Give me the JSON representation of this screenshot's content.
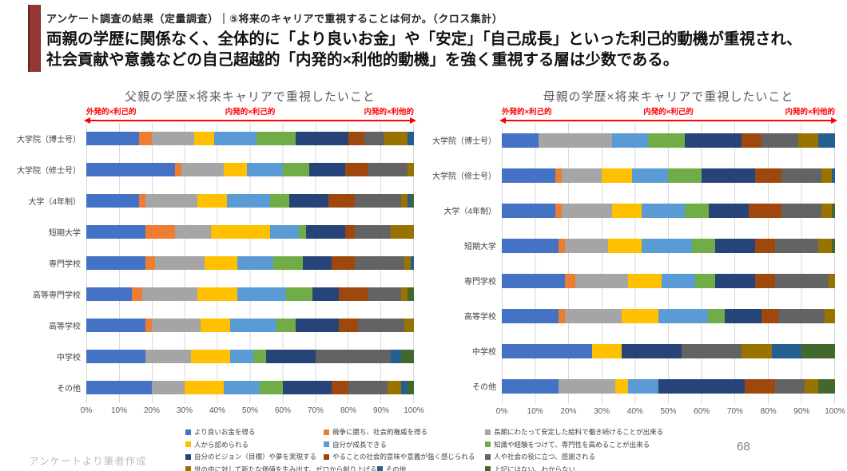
{
  "slide": {
    "kicker": "アンケート調査の結果（定量調査）｜⑤将来のキャリアで重視することは何か。（クロス集計）",
    "headline_line1": "両親の学歴に関係なく、全体的に「より良いお金」や「安定」「自己成長」といった利己的動機が重視され、",
    "headline_line2": "社会貢献や意義などの自己超越的「内発的×利他的動機」を強く重視する層は少数である。",
    "footer_note": "アンケートより筆者作成",
    "page_number": "68",
    "accent_color": "#943634"
  },
  "axis_labels": {
    "left": "外発的×利己的",
    "center": "内発的×利己的",
    "right": "内発的×利他的",
    "color": "#ff0000"
  },
  "legend": {
    "left_chart_rows": [
      [
        0,
        1
      ],
      [
        3,
        4
      ],
      [
        6,
        7
      ],
      [
        9,
        10
      ]
    ],
    "right_chart_rows": [
      [
        2
      ],
      [
        5
      ],
      [
        8
      ],
      [
        11
      ]
    ]
  },
  "chart_data": [
    {
      "type": "bar",
      "orientation": "horizontal-stacked",
      "title": "父親の学歴×将来キャリアで重視したいこと",
      "x_range": [
        0,
        100
      ],
      "x_ticks": [
        "0%",
        "10%",
        "20%",
        "30%",
        "40%",
        "50%",
        "60%",
        "70%",
        "80%",
        "90%",
        "100%"
      ],
      "grid": true,
      "legend_position": "bottom",
      "categories": [
        "大学院（博士号）",
        "大学院（修士号）",
        "大学（4年制）",
        "短期大学",
        "専門学校",
        "高等専門学校",
        "高等学校",
        "中学校",
        "その他"
      ],
      "series": [
        {
          "name": "より良いお金を得る",
          "color": "#4472C4",
          "values": [
            16,
            27,
            16,
            18,
            18,
            14,
            18,
            18,
            20
          ]
        },
        {
          "name": "競争に勝ち、社会的権威を得る",
          "color": "#ED7D31",
          "values": [
            4,
            2,
            2,
            9,
            3,
            3,
            2,
            0,
            0
          ]
        },
        {
          "name": "長期にわたって安定した給料で働き続けることが出来る",
          "color": "#A5A5A5",
          "values": [
            13,
            13,
            16,
            11,
            15,
            17,
            15,
            14,
            10
          ]
        },
        {
          "name": "人から認められる",
          "color": "#FFC000",
          "values": [
            6,
            7,
            9,
            18,
            10,
            12,
            9,
            12,
            12
          ]
        },
        {
          "name": "自分が成長できる",
          "color": "#5B9BD5",
          "values": [
            13,
            11,
            13,
            9,
            11,
            15,
            14,
            7,
            11
          ]
        },
        {
          "name": "知識や経験をつけて、専門性を高めることが出来る",
          "color": "#70AD47",
          "values": [
            12,
            8,
            6,
            2,
            9,
            8,
            6,
            4,
            7
          ]
        },
        {
          "name": "自分のビジョン（目標）や夢を実現する",
          "color": "#264478",
          "values": [
            16,
            11,
            12,
            12,
            9,
            8,
            13,
            15,
            15
          ]
        },
        {
          "name": "やることの社会的意味や意義が強く感じられる",
          "color": "#9E480E",
          "values": [
            5,
            7,
            8,
            3,
            7,
            9,
            6,
            0,
            5
          ]
        },
        {
          "name": "人や社会の役に立つ、感謝される",
          "color": "#636363",
          "values": [
            6,
            12,
            14,
            11,
            15,
            10,
            14,
            23,
            12
          ]
        },
        {
          "name": "世の中に対して新たな価値を生み出す、ゼロから創り上げる",
          "color": "#997300",
          "values": [
            7,
            2,
            2,
            7,
            2,
            2,
            3,
            0,
            4
          ]
        },
        {
          "name": "その他",
          "color": "#255E91",
          "values": [
            2,
            0,
            1,
            0,
            1,
            0,
            0,
            3,
            2
          ]
        },
        {
          "name": "上記にはない、わからない",
          "color": "#43682B",
          "values": [
            0,
            0,
            1,
            0,
            0,
            2,
            0,
            4,
            2
          ]
        }
      ]
    },
    {
      "type": "bar",
      "orientation": "horizontal-stacked",
      "title": "母親の学歴×将来キャリアで重視したいこと",
      "x_range": [
        0,
        100
      ],
      "x_ticks": [
        "0%",
        "10%",
        "20%",
        "30%",
        "40%",
        "50%",
        "60%",
        "70%",
        "80%",
        "90%",
        "100%"
      ],
      "grid": true,
      "legend_position": "bottom",
      "categories": [
        "大学院（博士号）",
        "大学院（修士号）",
        "大学（4年制）",
        "短期大学",
        "専門学校",
        "高等学校",
        "中学校",
        "その他"
      ],
      "series": [
        {
          "name": "より良いお金を得る",
          "color": "#4472C4",
          "values": [
            11,
            16,
            16,
            17,
            19,
            17,
            27,
            17
          ]
        },
        {
          "name": "競争に勝ち、社会的権威を得る",
          "color": "#ED7D31",
          "values": [
            0,
            2,
            2,
            2,
            3,
            2,
            0,
            0
          ]
        },
        {
          "name": "長期にわたって安定した給料で働き続けることが出来る",
          "color": "#A5A5A5",
          "values": [
            22,
            12,
            15,
            13,
            16,
            17,
            0,
            17
          ]
        },
        {
          "name": "人から認められる",
          "color": "#FFC000",
          "values": [
            0,
            9,
            9,
            10,
            10,
            11,
            9,
            4
          ]
        },
        {
          "name": "自分が成長できる",
          "color": "#5B9BD5",
          "values": [
            11,
            11,
            13,
            15,
            10,
            15,
            0,
            9
          ]
        },
        {
          "name": "知識や経験をつけて、専門性を高めることが出来る",
          "color": "#70AD47",
          "values": [
            11,
            10,
            7,
            7,
            6,
            5,
            0,
            0
          ]
        },
        {
          "name": "自分のビジョン（目標）や夢を実現する",
          "color": "#264478",
          "values": [
            17,
            16,
            12,
            12,
            12,
            11,
            18,
            26
          ]
        },
        {
          "name": "やることの社会的意味や意義が強く感じられる",
          "color": "#9E480E",
          "values": [
            6,
            8,
            10,
            6,
            6,
            5,
            0,
            9
          ]
        },
        {
          "name": "人や社会の役に立つ、感謝される",
          "color": "#636363",
          "values": [
            11,
            12,
            12,
            13,
            16,
            14,
            18,
            9
          ]
        },
        {
          "name": "世の中に対して新たな価値を生み出す、ゼロから創り上げる",
          "color": "#997300",
          "values": [
            6,
            3,
            3,
            4,
            2,
            3,
            9,
            4
          ]
        },
        {
          "name": "その他",
          "color": "#255E91",
          "values": [
            5,
            1,
            0,
            0,
            0,
            0,
            9,
            0
          ]
        },
        {
          "name": "上記にはない、わからない",
          "color": "#43682B",
          "values": [
            0,
            0,
            1,
            1,
            0,
            0,
            10,
            5
          ]
        }
      ]
    }
  ]
}
